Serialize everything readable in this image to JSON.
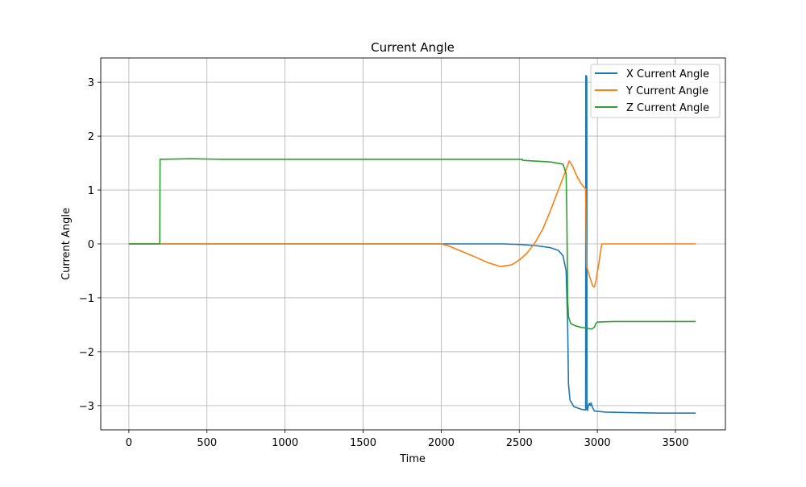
{
  "chart_data": {
    "type": "line",
    "title": "Current Angle",
    "xlabel": "Time",
    "ylabel": "Current Angle",
    "xlim": [
      -180,
      3820
    ],
    "ylim": [
      -3.45,
      3.45
    ],
    "xticks": [
      0,
      500,
      1000,
      1500,
      2000,
      2500,
      3000,
      3500
    ],
    "yticks": [
      -3,
      -2,
      -1,
      0,
      1,
      2,
      3
    ],
    "xtick_labels": [
      "0",
      "500",
      "1000",
      "1500",
      "2000",
      "2500",
      "3000",
      "3500"
    ],
    "ytick_labels": [
      "−3",
      "−2",
      "−1",
      "0",
      "1",
      "2",
      "3"
    ],
    "grid": true,
    "legend_position": "top-right",
    "series": [
      {
        "name": "X Current Angle",
        "color": "#1f77b4",
        "points": [
          [
            0,
            0
          ],
          [
            500,
            0
          ],
          [
            1000,
            0
          ],
          [
            1500,
            0
          ],
          [
            2000,
            0
          ],
          [
            2200,
            0.0
          ],
          [
            2400,
            0.0
          ],
          [
            2500,
            -0.01
          ],
          [
            2600,
            -0.03
          ],
          [
            2700,
            -0.07
          ],
          [
            2750,
            -0.12
          ],
          [
            2780,
            -0.22
          ],
          [
            2800,
            -0.5
          ],
          [
            2810,
            -1.5
          ],
          [
            2815,
            -2.6
          ],
          [
            2825,
            -2.9
          ],
          [
            2850,
            -3.02
          ],
          [
            2900,
            -3.07
          ],
          [
            2925,
            -3.08
          ],
          [
            2926,
            3.12
          ],
          [
            2930,
            3.12
          ],
          [
            2932,
            3.08
          ],
          [
            2934,
            -3.08
          ],
          [
            2938,
            -3.09
          ],
          [
            2942,
            -3.0
          ],
          [
            2948,
            -2.96
          ],
          [
            2955,
            -3.0
          ],
          [
            2960,
            -2.95
          ],
          [
            2965,
            -3.0
          ],
          [
            2980,
            -3.1
          ],
          [
            3050,
            -3.12
          ],
          [
            3200,
            -3.13
          ],
          [
            3400,
            -3.14
          ],
          [
            3630,
            -3.14
          ]
        ]
      },
      {
        "name": "Y Current Angle",
        "color": "#ff7f0e",
        "points": [
          [
            0,
            0
          ],
          [
            500,
            0
          ],
          [
            1000,
            0
          ],
          [
            1500,
            0
          ],
          [
            2000,
            0
          ],
          [
            2050,
            -0.04
          ],
          [
            2100,
            -0.1
          ],
          [
            2200,
            -0.22
          ],
          [
            2300,
            -0.35
          ],
          [
            2380,
            -0.42
          ],
          [
            2450,
            -0.39
          ],
          [
            2500,
            -0.3
          ],
          [
            2550,
            -0.17
          ],
          [
            2600,
            0.02
          ],
          [
            2650,
            0.27
          ],
          [
            2700,
            0.62
          ],
          [
            2750,
            1.0
          ],
          [
            2800,
            1.38
          ],
          [
            2820,
            1.54
          ],
          [
            2840,
            1.45
          ],
          [
            2870,
            1.25
          ],
          [
            2900,
            1.1
          ],
          [
            2925,
            1.02
          ],
          [
            2930,
            -0.4
          ],
          [
            2950,
            -0.6
          ],
          [
            2970,
            -0.78
          ],
          [
            2980,
            -0.8
          ],
          [
            2990,
            -0.7
          ],
          [
            3010,
            -0.35
          ],
          [
            3025,
            -0.05
          ],
          [
            3030,
            0.0
          ],
          [
            3100,
            0.0
          ],
          [
            3300,
            0.0
          ],
          [
            3630,
            0.0
          ]
        ]
      },
      {
        "name": "Z Current Angle",
        "color": "#2ca02c",
        "points": [
          [
            0,
            0
          ],
          [
            150,
            0
          ],
          [
            198,
            0
          ],
          [
            200,
            1.57
          ],
          [
            400,
            1.58
          ],
          [
            600,
            1.57
          ],
          [
            800,
            1.57
          ],
          [
            1000,
            1.57
          ],
          [
            1500,
            1.57
          ],
          [
            2000,
            1.57
          ],
          [
            2520,
            1.57
          ],
          [
            2522,
            1.55
          ],
          [
            2700,
            1.52
          ],
          [
            2780,
            1.48
          ],
          [
            2800,
            1.3
          ],
          [
            2805,
            0.5
          ],
          [
            2810,
            -1.0
          ],
          [
            2815,
            -1.35
          ],
          [
            2830,
            -1.48
          ],
          [
            2860,
            -1.52
          ],
          [
            2900,
            -1.55
          ],
          [
            2930,
            -1.56
          ],
          [
            2960,
            -1.58
          ],
          [
            2980,
            -1.55
          ],
          [
            2990,
            -1.48
          ],
          [
            3000,
            -1.45
          ],
          [
            3100,
            -1.44
          ],
          [
            3300,
            -1.44
          ],
          [
            3630,
            -1.44
          ]
        ]
      }
    ]
  }
}
